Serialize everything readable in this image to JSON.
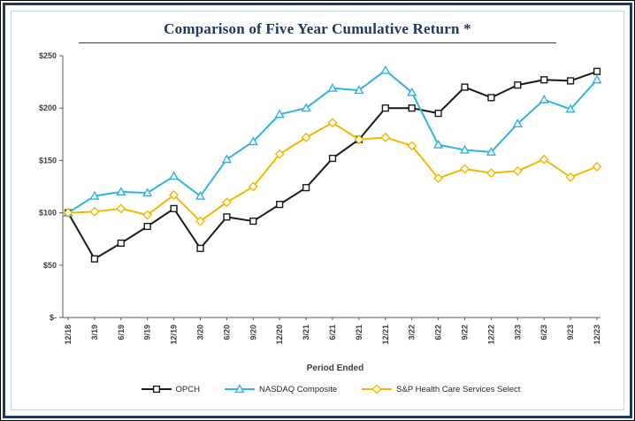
{
  "chart": {
    "title": "Comparison of Five Year Cumulative Return *",
    "x_axis_title": "Period Ended"
  },
  "chart_data": {
    "type": "line",
    "title": "Comparison of Five Year Cumulative Return *",
    "xlabel": "Period Ended",
    "ylabel": "",
    "ylim": [
      0,
      250
    ],
    "y_tick_values": [
      0,
      50,
      100,
      150,
      200,
      250
    ],
    "y_tick_labels": [
      "$-",
      "$50",
      "$100",
      "$150",
      "$200",
      "$250"
    ],
    "grid": false,
    "legend_position": "bottom",
    "categories": [
      "12/18",
      "3/19",
      "6/19",
      "9/19",
      "12/19",
      "3/20",
      "6/20",
      "9/20",
      "12/20",
      "3/21",
      "6/21",
      "9/21",
      "12/21",
      "3/22",
      "6/22",
      "9/22",
      "12/22",
      "3/23",
      "6/23",
      "9/23",
      "12/23"
    ],
    "series": [
      {
        "name": "OPCH",
        "color": "#1a1a1a",
        "marker": "square",
        "values": [
          100,
          56,
          71,
          87,
          104,
          66,
          96,
          92,
          108,
          124,
          152,
          170,
          200,
          200,
          195,
          220,
          210,
          222,
          227,
          226,
          235
        ]
      },
      {
        "name": "NASDAQ Composite",
        "color": "#2FB3E3",
        "marker": "triangle",
        "values": [
          100,
          116,
          120,
          119,
          135,
          116,
          151,
          168,
          194,
          200,
          219,
          217,
          236,
          215,
          165,
          160,
          158,
          185,
          208,
          199,
          227
        ]
      },
      {
        "name": "S&P Health Care Services Select",
        "color": "#F5B800",
        "marker": "diamond",
        "values": [
          100,
          101,
          104,
          98,
          117,
          92,
          110,
          125,
          156,
          172,
          186,
          170,
          172,
          164,
          133,
          142,
          138,
          140,
          151,
          134,
          144
        ]
      }
    ]
  }
}
